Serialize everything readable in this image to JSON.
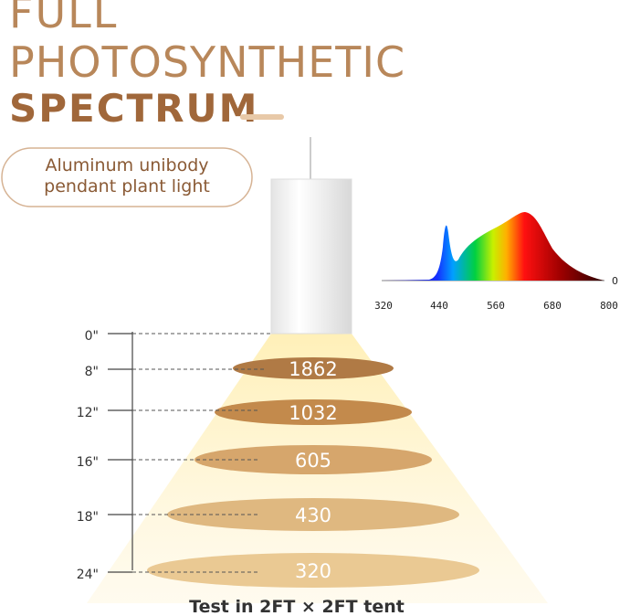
{
  "header": {
    "title_lines": [
      "FULL",
      "PHOTOSYNTHETIC"
    ],
    "highlight": "SPECTRUM"
  },
  "badge": {
    "lines": [
      "Aluminum unibody",
      "pendant plant light"
    ]
  },
  "spectrum": {
    "x_labels": [
      "320",
      "440",
      "560",
      "680",
      "800"
    ],
    "y_label": "0"
  },
  "measurements": {
    "distances": [
      "0\"",
      "8\"",
      "12\"",
      "16\"",
      "18\"",
      "24\""
    ],
    "ppfd": [
      "1862",
      "1032",
      "605",
      "430",
      "320"
    ]
  },
  "footer": "Test in 2FT × 2FT tent"
}
